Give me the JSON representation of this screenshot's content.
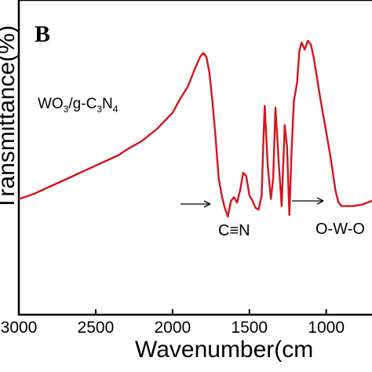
{
  "chart_data": {
    "type": "line",
    "panel_label": "B",
    "xlabel": "Wavenumber(cm",
    "ylabel": "Transmittance(%)",
    "xlim": [
      3000,
      600
    ],
    "x_reversed": true,
    "xticks": [
      "3000",
      "2500",
      "2000",
      "1500",
      "1000"
    ],
    "grid": false,
    "series": [
      {
        "name": "WO3/g-C3N4",
        "name_parts": {
          "main": "WO",
          "s1": "3",
          "mid": "/g-C",
          "s2": "3",
          "end": "N",
          "s3": "4"
        },
        "color": "#d4151b",
        "x": [
          3000,
          2900,
          2800,
          2700,
          2600,
          2500,
          2400,
          2350,
          2300,
          2200,
          2100,
          2000,
          1950,
          1900,
          1850,
          1820,
          1800,
          1780,
          1760,
          1740,
          1720,
          1700,
          1680,
          1660,
          1640,
          1620,
          1600,
          1580,
          1560,
          1540,
          1520,
          1500,
          1480,
          1460,
          1440,
          1420,
          1410,
          1400,
          1380,
          1360,
          1345,
          1330,
          1310,
          1290,
          1270,
          1255,
          1240,
          1225,
          1210,
          1190,
          1175,
          1160,
          1140,
          1120,
          1100,
          1080,
          1060,
          1040,
          1020,
          1000,
          980,
          960,
          940,
          920,
          900,
          880,
          860,
          820,
          760,
          700,
          660,
          620,
          600
        ],
        "y": [
          0.1,
          0.13,
          0.17,
          0.21,
          0.25,
          0.29,
          0.33,
          0.35,
          0.38,
          0.43,
          0.5,
          0.59,
          0.67,
          0.74,
          0.85,
          0.91,
          0.93,
          0.91,
          0.82,
          0.65,
          0.45,
          0.22,
          0.12,
          0.05,
          0.0,
          0.09,
          0.11,
          0.08,
          0.15,
          0.25,
          0.23,
          0.12,
          0.09,
          0.05,
          0.04,
          0.12,
          0.4,
          0.63,
          0.28,
          0.1,
          0.22,
          0.62,
          0.32,
          0.06,
          0.52,
          0.4,
          0.01,
          0.38,
          0.66,
          0.76,
          0.94,
          0.99,
          0.95,
          1.0,
          0.98,
          0.9,
          0.79,
          0.68,
          0.58,
          0.48,
          0.38,
          0.27,
          0.15,
          0.08,
          0.06,
          0.06,
          0.06,
          0.06,
          0.07,
          0.09,
          0.11,
          0.13,
          0.15
        ]
      }
    ],
    "annotations": [
      {
        "text": "C≡N",
        "x": 1620,
        "arrow": true
      },
      {
        "text": "O-W-O",
        "x": 920,
        "arrow": true
      }
    ]
  }
}
